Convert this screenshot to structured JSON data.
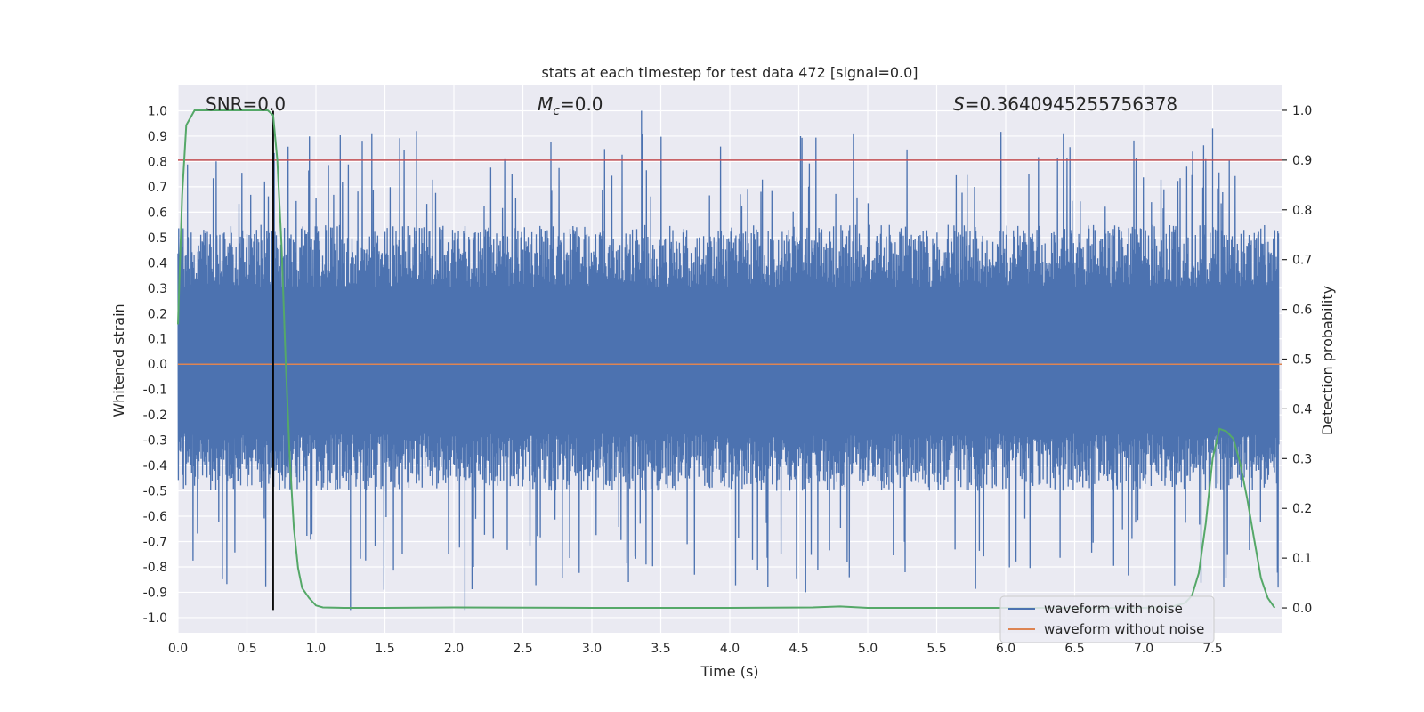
{
  "chart_data": {
    "type": "line",
    "title": "stats at each timestep for test data 472 [signal=0.0]",
    "xlabel": "Time (s)",
    "ylabel_left": "Whitened strain",
    "ylabel_right": "Detection probability",
    "xlim": [
      0.0,
      8.0
    ],
    "ylim_left": [
      -1.06,
      1.1
    ],
    "ylim_right": [
      -0.05,
      1.05
    ],
    "x_ticks": [
      "0.0",
      "0.5",
      "1.0",
      "1.5",
      "2.0",
      "2.5",
      "3.0",
      "3.5",
      "4.0",
      "4.5",
      "5.0",
      "5.5",
      "6.0",
      "6.5",
      "7.0",
      "7.5"
    ],
    "y_ticks_left": [
      "1.0",
      "0.9",
      "0.8",
      "0.7",
      "0.6",
      "0.5",
      "0.4",
      "0.3",
      "0.2",
      "0.1",
      "0.0",
      "-0.1",
      "-0.2",
      "-0.3",
      "-0.4",
      "-0.5",
      "-0.6",
      "-0.7",
      "-0.8",
      "-0.9",
      "-1.0"
    ],
    "y_ticks_right": [
      "1.0",
      "0.9",
      "0.8",
      "0.7",
      "0.6",
      "0.5",
      "0.4",
      "0.3",
      "0.2",
      "0.1",
      "0.0"
    ],
    "grid": true,
    "annotations": {
      "snr_label": "SNR=0.0",
      "mc_symbol": "M",
      "mc_sub": "c",
      "mc_value": "=0.0",
      "s_symbol": "S",
      "s_value": "=0.3640945255756378"
    },
    "threshold": {
      "axis": "right",
      "value": 0.9,
      "color": "#c44e52"
    },
    "marker_time": 0.69,
    "series": [
      {
        "name": "waveform with noise",
        "axis": "left",
        "color": "#4c72b0",
        "note": "dense noise trace between approximately -0.97 and 1.0",
        "envelope": {
          "max": 1.0,
          "min": -0.97,
          "typical_upper": 0.55,
          "typical_lower": -0.5
        }
      },
      {
        "name": "waveform without noise",
        "axis": "left",
        "color": "#dd8452",
        "values_constant": 0.0
      },
      {
        "name": "detection probability",
        "axis": "right",
        "color": "#55a868",
        "x": [
          0.0,
          0.03,
          0.06,
          0.12,
          0.2,
          0.3,
          0.4,
          0.5,
          0.6,
          0.65,
          0.69,
          0.72,
          0.75,
          0.78,
          0.81,
          0.84,
          0.87,
          0.9,
          0.95,
          1.0,
          1.05,
          1.2,
          1.5,
          2.0,
          3.0,
          4.0,
          4.6,
          4.8,
          5.0,
          5.5,
          6.0,
          6.5,
          7.0,
          7.2,
          7.3,
          7.35,
          7.4,
          7.45,
          7.5,
          7.55,
          7.6,
          7.65,
          7.7,
          7.75,
          7.8,
          7.85,
          7.9,
          7.95
        ],
        "values": [
          0.57,
          0.83,
          0.97,
          1.0,
          1.0,
          1.0,
          1.0,
          1.0,
          1.0,
          1.0,
          0.99,
          0.9,
          0.73,
          0.5,
          0.3,
          0.16,
          0.08,
          0.04,
          0.02,
          0.005,
          0.001,
          0.0,
          0.0,
          0.001,
          0.0,
          0.0,
          0.001,
          0.003,
          0.0,
          0.0,
          0.0,
          0.0,
          0.0,
          0.002,
          0.01,
          0.025,
          0.07,
          0.17,
          0.3,
          0.36,
          0.355,
          0.34,
          0.29,
          0.22,
          0.14,
          0.06,
          0.02,
          0.0
        ]
      }
    ],
    "legend": {
      "location": "lower-right",
      "entries": [
        "waveform with noise",
        "waveform without noise"
      ]
    }
  }
}
